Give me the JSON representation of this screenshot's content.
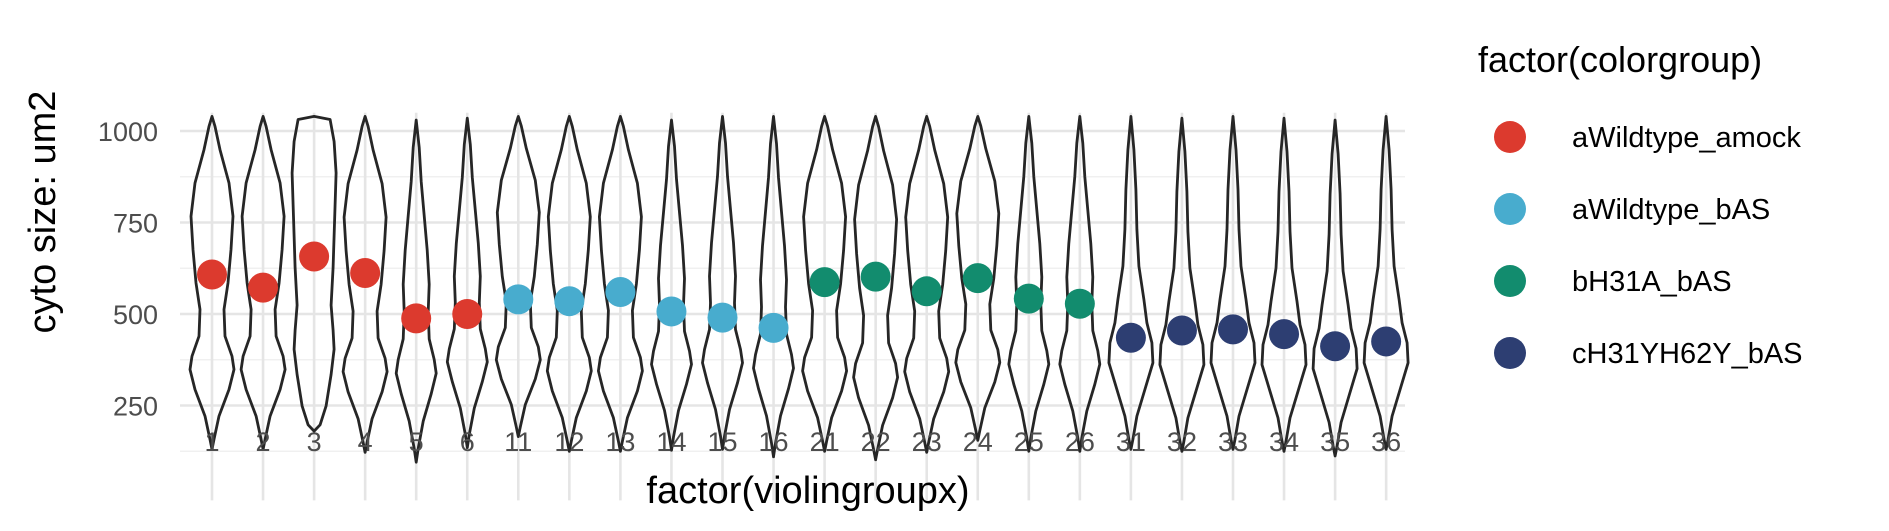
{
  "chart_data": {
    "type": "violin",
    "xlabel": "factor(violingroupx)",
    "ylabel": "cyto size: um2",
    "ylim": [
      100,
      1050
    ],
    "yticks": [
      250,
      500,
      750,
      1000
    ],
    "grid": true,
    "legend": {
      "title": "factor(colorgroup)",
      "position": "right",
      "entries": [
        {
          "name": "aWildtype_amock",
          "color": "#DC3A2E"
        },
        {
          "name": "aWildtype_bAS",
          "color": "#48ACCE"
        },
        {
          "name": "bH31A_bAS",
          "color": "#128C6E"
        },
        {
          "name": "cH31YH62Y_bAS",
          "color": "#2D3E72"
        }
      ]
    },
    "categories": [
      "1",
      "2",
      "3",
      "4",
      "5",
      "6",
      "11",
      "12",
      "13",
      "14",
      "15",
      "16",
      "21",
      "22",
      "23",
      "24",
      "25",
      "26",
      "31",
      "32",
      "33",
      "34",
      "35",
      "36"
    ],
    "groups": [
      {
        "x": "1",
        "color_group": "aWildtype_amock",
        "mean": 608,
        "min": 130,
        "max": 1040,
        "shape": "A"
      },
      {
        "x": "2",
        "color_group": "aWildtype_amock",
        "mean": 572,
        "min": 130,
        "max": 1040,
        "shape": "A"
      },
      {
        "x": "3",
        "color_group": "aWildtype_amock",
        "mean": 657,
        "min": 180,
        "max": 1040,
        "shape": "C"
      },
      {
        "x": "4",
        "color_group": "aWildtype_amock",
        "mean": 612,
        "min": 122,
        "max": 1040,
        "shape": "A"
      },
      {
        "x": "5",
        "color_group": "aWildtype_amock",
        "mean": 488,
        "min": 95,
        "max": 1030,
        "shape": "B"
      },
      {
        "x": "6",
        "color_group": "aWildtype_amock",
        "mean": 500,
        "min": 135,
        "max": 1035,
        "shape": "B"
      },
      {
        "x": "11",
        "color_group": "aWildtype_bAS",
        "mean": 540,
        "min": 165,
        "max": 1040,
        "shape": "A"
      },
      {
        "x": "12",
        "color_group": "aWildtype_bAS",
        "mean": 535,
        "min": 125,
        "max": 1040,
        "shape": "A"
      },
      {
        "x": "13",
        "color_group": "aWildtype_bAS",
        "mean": 560,
        "min": 125,
        "max": 1040,
        "shape": "A"
      },
      {
        "x": "14",
        "color_group": "aWildtype_bAS",
        "mean": 507,
        "min": 128,
        "max": 1030,
        "shape": "B"
      },
      {
        "x": "15",
        "color_group": "aWildtype_bAS",
        "mean": 490,
        "min": 130,
        "max": 1040,
        "shape": "B"
      },
      {
        "x": "16",
        "color_group": "aWildtype_bAS",
        "mean": 462,
        "min": 110,
        "max": 1040,
        "shape": "B"
      },
      {
        "x": "21",
        "color_group": "bH31A_bAS",
        "mean": 587,
        "min": 125,
        "max": 1040,
        "shape": "A"
      },
      {
        "x": "22",
        "color_group": "bH31A_bAS",
        "mean": 602,
        "min": 102,
        "max": 1040,
        "shape": "A"
      },
      {
        "x": "23",
        "color_group": "bH31A_bAS",
        "mean": 562,
        "min": 122,
        "max": 1040,
        "shape": "A"
      },
      {
        "x": "24",
        "color_group": "bH31A_bAS",
        "mean": 598,
        "min": 155,
        "max": 1040,
        "shape": "A"
      },
      {
        "x": "25",
        "color_group": "bH31A_bAS",
        "mean": 542,
        "min": 125,
        "max": 1040,
        "shape": "B"
      },
      {
        "x": "26",
        "color_group": "bH31A_bAS",
        "mean": 528,
        "min": 125,
        "max": 1040,
        "shape": "B"
      },
      {
        "x": "31",
        "color_group": "cH31YH62Y_bAS",
        "mean": 435,
        "min": 130,
        "max": 1040,
        "shape": "D"
      },
      {
        "x": "32",
        "color_group": "cH31YH62Y_bAS",
        "mean": 455,
        "min": 125,
        "max": 1035,
        "shape": "D"
      },
      {
        "x": "33",
        "color_group": "cH31YH62Y_bAS",
        "mean": 458,
        "min": 130,
        "max": 1040,
        "shape": "D"
      },
      {
        "x": "34",
        "color_group": "cH31YH62Y_bAS",
        "mean": 445,
        "min": 125,
        "max": 1035,
        "shape": "D"
      },
      {
        "x": "35",
        "color_group": "cH31YH62Y_bAS",
        "mean": 412,
        "min": 112,
        "max": 1030,
        "shape": "D"
      },
      {
        "x": "36",
        "color_group": "cH31YH62Y_bAS",
        "mean": 425,
        "min": 130,
        "max": 1040,
        "shape": "D"
      }
    ]
  }
}
